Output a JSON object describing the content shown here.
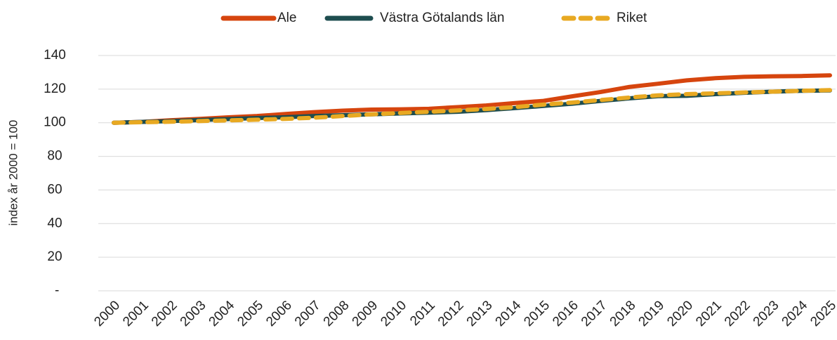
{
  "chart_data": {
    "type": "line",
    "y_label": "index år 2000 = 100",
    "categories": [
      "2000",
      "2001",
      "2002",
      "2003",
      "2004",
      "2005",
      "2006",
      "2007",
      "2008",
      "2009",
      "2010",
      "2011",
      "2012",
      "2013",
      "2014",
      "2015",
      "2016",
      "2017",
      "2018",
      "2019",
      "2020",
      "2021",
      "2022",
      "2023",
      "2024",
      "2025"
    ],
    "series": [
      {
        "name": "Ale",
        "color": "#d6450e",
        "dash": false,
        "values": [
          100,
          100.5,
          101.5,
          102.3,
          103.2,
          104,
          105.2,
          106.3,
          107.2,
          107.8,
          108,
          108.3,
          109.3,
          110.3,
          111.7,
          113,
          115.7,
          118.3,
          121.3,
          123.2,
          125.2,
          126.5,
          127.3,
          127.6,
          127.8,
          128.2
        ]
      },
      {
        "name": "Västra Götalands län",
        "color": "#1e4d4f",
        "dash": false,
        "values": [
          100,
          100.5,
          101,
          101.6,
          102.2,
          102.8,
          103.3,
          104,
          104.5,
          105,
          105.5,
          106,
          106.5,
          107.5,
          108.7,
          110,
          111.3,
          113,
          114.5,
          115.8,
          116,
          117,
          117.8,
          118.5,
          119,
          119.2
        ]
      },
      {
        "name": "Riket",
        "color": "#e8a922",
        "dash": true,
        "values": [
          100,
          100.3,
          100.6,
          101,
          101.4,
          101.8,
          102.3,
          103,
          104,
          105,
          105.8,
          106.5,
          107.3,
          108.2,
          109.3,
          110.8,
          112,
          113.5,
          115,
          116.3,
          117,
          117.5,
          118,
          118.5,
          119,
          119.4
        ]
      }
    ],
    "ylim": [
      0,
      140
    ],
    "yticks": [
      {
        "value": 0,
        "label": "-"
      },
      20,
      40,
      60,
      80,
      100,
      120,
      140
    ],
    "grid": true
  }
}
